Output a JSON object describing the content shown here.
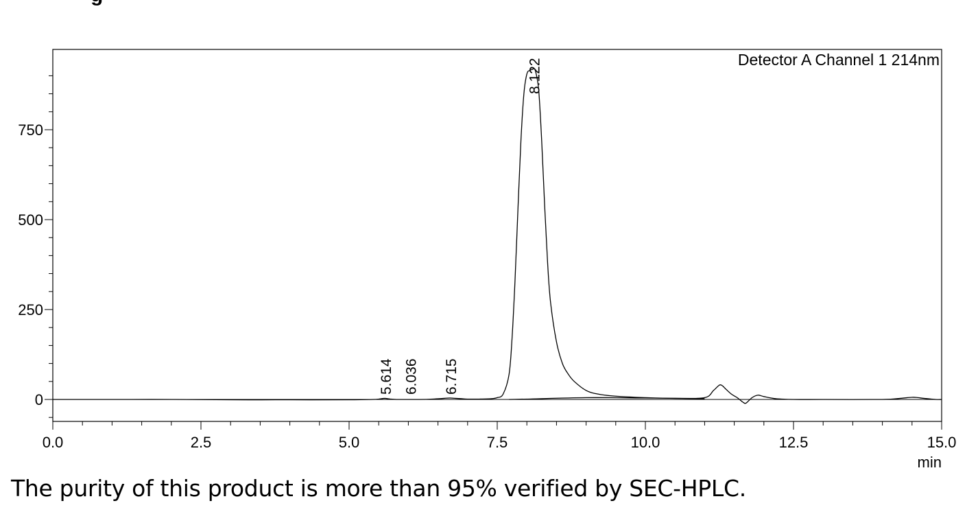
{
  "heading_fragment": "g",
  "caption": "The purity of this product is more than 95% verified by SEC-HPLC.",
  "chart_data": {
    "type": "line",
    "title": "",
    "channel_label": "Detector A Channel 1 214nm",
    "xlabel": "min",
    "ylabel": "",
    "xlim": [
      0,
      15
    ],
    "ylim": [
      -60,
      955
    ],
    "x_ticks": [
      0,
      2.5,
      5,
      7.5,
      10,
      12.5,
      15
    ],
    "x_tick_labels": [
      "0.0",
      "2.5",
      "5.0",
      "7.5",
      "10.0",
      "12.5",
      "15.0"
    ],
    "y_ticks": [
      0,
      250,
      500,
      750
    ],
    "y_tick_labels": [
      "0",
      "250",
      "500",
      "750"
    ],
    "peak_labels": [
      "5.614",
      "6.036",
      "6.715",
      "8.122"
    ],
    "peak_label_x": [
      5.614,
      6.036,
      6.715,
      8.122
    ],
    "series": [
      {
        "x": [
          0,
          1,
          2,
          3,
          4,
          5,
          5.4,
          5.5,
          5.6,
          5.7,
          5.8,
          6.0,
          6.2,
          6.4,
          6.6,
          6.7,
          6.8,
          6.9,
          7.0,
          7.2,
          7.4,
          7.5,
          7.6,
          7.7,
          7.75,
          7.8,
          7.85,
          7.9,
          7.95,
          8.0,
          8.05,
          8.1,
          8.12,
          8.15,
          8.2,
          8.25,
          8.3,
          8.35,
          8.4,
          8.5,
          8.6,
          8.7,
          8.8,
          9.0,
          9.2,
          9.5,
          10.0,
          10.5,
          11.0,
          11.15,
          11.25,
          11.3,
          11.35,
          11.45,
          11.55,
          11.65,
          11.7,
          11.8,
          11.9,
          12.0,
          12.2,
          12.5,
          13.0,
          14.0,
          14.3,
          14.5,
          14.6,
          14.7,
          14.9,
          15.0
        ],
        "y": [
          0,
          0,
          0,
          -1,
          -1,
          -1,
          0,
          1,
          3,
          1,
          0,
          0,
          0,
          1,
          3,
          4,
          3,
          2,
          1,
          1,
          2,
          5,
          15,
          70,
          170,
          330,
          530,
          720,
          850,
          905,
          915,
          918,
          920,
          910,
          860,
          720,
          540,
          380,
          270,
          160,
          100,
          70,
          50,
          25,
          15,
          9,
          5,
          3,
          5,
          25,
          40,
          38,
          30,
          15,
          5,
          -8,
          -10,
          5,
          12,
          8,
          2,
          0,
          0,
          0,
          3,
          6,
          5,
          3,
          0,
          0
        ]
      },
      {
        "x": [
          7.7,
          8.0,
          9.0,
          10.0,
          11.0
        ],
        "y": [
          0,
          1,
          5,
          4,
          2
        ]
      }
    ]
  }
}
